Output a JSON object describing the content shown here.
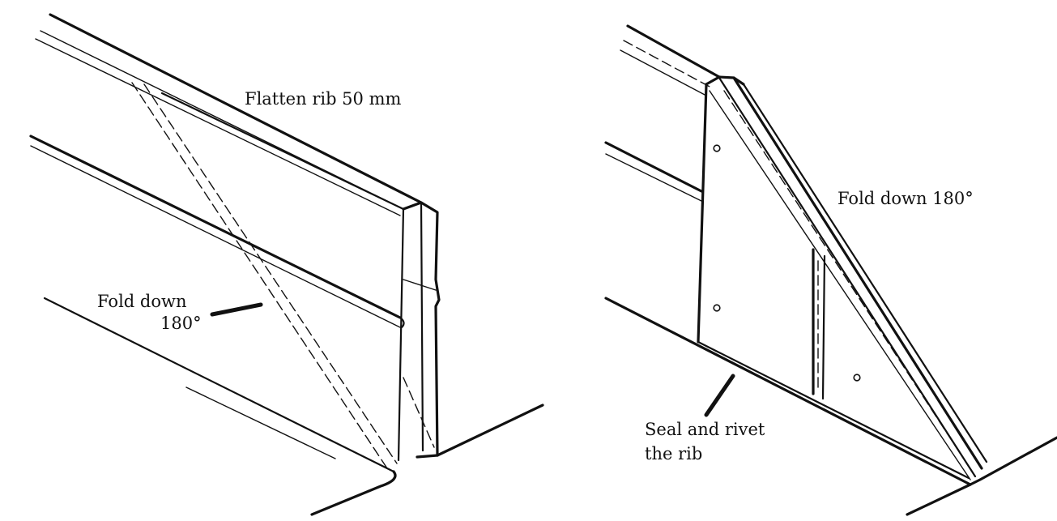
{
  "left_panel": {
    "label_flatten": "Flatten rib 50 mm",
    "label_fold_line1": "Fold down",
    "label_fold_line2": "180°"
  },
  "right_panel": {
    "label_fold": "Fold down 180°",
    "label_seal_line1": "Seal and rivet",
    "label_seal_line2": "the rib"
  }
}
